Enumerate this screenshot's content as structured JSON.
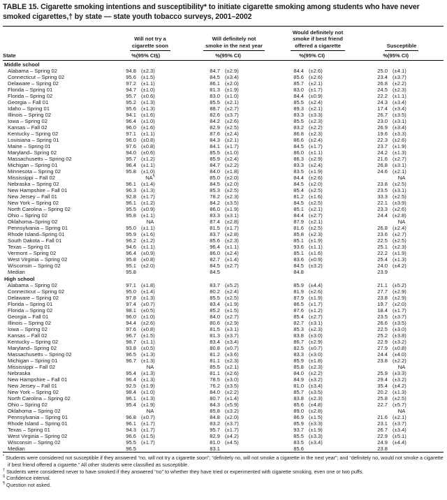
{
  "title": "TABLE 15. Cigarette smoking intentions and susceptibility* to initiate cigarette smoking among students who have never smoked cigarettes,† by state — state youth tobacco surveys, 2001–2002",
  "columns": {
    "state": "State",
    "groups": [
      {
        "lines": [
          "Will not try a",
          "cigarette soon"
        ],
        "pct": "%",
        "ci": "(95% CI§)"
      },
      {
        "lines": [
          "Will definitely not",
          "smoke in the next year"
        ],
        "pct": "%",
        "ci": "(95% CI)"
      },
      {
        "lines": [
          "Would definitely not",
          "smoke if best friend",
          "offered a cigarette"
        ],
        "pct": "%",
        "ci": "(95% CI)"
      },
      {
        "lines": [
          "Susceptible"
        ],
        "pct": "%",
        "ci": "(95% CI)"
      }
    ]
  },
  "sections": [
    {
      "name": "Middle school",
      "rows": [
        [
          "Alabama – Spring 02",
          "94.8",
          "(±2.3)",
          "84.7",
          "(±2.9)",
          "84.4",
          "(±2.6)",
          "25.0",
          "(±4.1)"
        ],
        [
          "Connecticut – Spring 02",
          "95.6",
          "(±1.5)",
          "84.5",
          "(±3.4)",
          "85.6",
          "(±2.6)",
          "23.4",
          "(±3.7)"
        ],
        [
          "Delaware – Spring 02",
          "97.2",
          "(±1.1)",
          "86.1",
          "(±2.0)",
          "85.7",
          "(±2.1)",
          "26.8",
          "(±2.2)"
        ],
        [
          "Florida – Spring 01",
          "94.7",
          "(±1.0)",
          "81.3",
          "(±1.9)",
          "83.0",
          "(±1.7)",
          "24.5",
          "(±2.3)"
        ],
        [
          "Florida – Spring 02",
          "95.7",
          "(±0.6)",
          "83.0",
          "(±1.0)",
          "84.4",
          "(±0.9)",
          "22.2",
          "(±1.1)"
        ],
        [
          "Georgia – Fall 01",
          "95.2",
          "(±1.3)",
          "85.5",
          "(±2.1)",
          "85.5",
          "(±2.4)",
          "24.3",
          "(±3.4)"
        ],
        [
          "Idaho – Spring 01",
          "95.6",
          "(±1.3)",
          "88.7",
          "(±2.7)",
          "89.3",
          "(±2.1)",
          "17.4",
          "(±3.4)"
        ],
        [
          "Illinois – Spring 02",
          "94.1",
          "(±1.6)",
          "82.6",
          "(±3.7)",
          "83.3",
          "(±3.3)",
          "26.7",
          "(±3.5)"
        ],
        [
          "Iowa – Spring 02",
          "96.4",
          "(±1.0)",
          "84.2",
          "(±2.6)",
          "85.5",
          "(±2.3)",
          "23.0",
          "(±3.1)"
        ],
        [
          "Kansas – Fall 02",
          "96.0",
          "(±1.6)",
          "82.9",
          "(±2.5)",
          "83.2",
          "(±2.2)",
          "26.9",
          "(±3.4)"
        ],
        [
          "Kentucky – Spring 02",
          "97.1",
          "(±1.1)",
          "87.6",
          "(±2.4)",
          "86.8",
          "(±2.3)",
          "19.6",
          "(±3.3)"
        ],
        [
          "Louisiana – Spring 01",
          "96.0",
          "(±0.8)",
          "84.3",
          "(±2.1)",
          "86.6",
          "(±2.4)",
          "22.3",
          "(±2.6)"
        ],
        [
          "Maine – Spring 01",
          "97.6",
          "(±0.8)",
          "84.1",
          "(±1.7)",
          "84.5",
          "(±1.7)",
          "23.7",
          "(±1.9)"
        ],
        [
          "Maryland– Spring 02",
          "94.0",
          "(±0.6)",
          "85.5",
          "(±1.0)",
          "86.0",
          "(±1.1)",
          "24.2",
          "(±1.3)"
        ],
        [
          "Massachusetts – Spring 02",
          "95.7",
          "(±1.2)",
          "85.9",
          "(±2.4)",
          "86.3",
          "(±2.9)",
          "21.6",
          "(±2.7)"
        ],
        [
          "Michigan – Spring 01",
          "96.4",
          "(±1.1)",
          "84.7",
          "(±2.2)",
          "83.3",
          "(±2.4)",
          "26.8",
          "(±3.1)"
        ],
        [
          "Minnesota – Spring 02",
          "95.8",
          "(±1.0)",
          "84.0",
          "(±1.8)",
          "83.5",
          "(±1.9)",
          "24.6",
          "(±2.1)"
        ],
        [
          "Mississippi – Fall 02",
          "NA¶",
          "",
          "85.0",
          "(±2.0)",
          "84.4",
          "(±2.6)",
          "NA",
          ""
        ],
        [
          "Nebraska – Spring 02",
          "96.1",
          "(±1.4)",
          "84.5",
          "(±2.0)",
          "84.5",
          "(±2.0)",
          "23.8",
          "(±2.5)"
        ],
        [
          "New Hampshire – Fall 01",
          "96.3",
          "(±1.3)",
          "85.3",
          "(±2.5)",
          "85.4",
          "(±2.5)",
          "23.5",
          "(±3.1)"
        ],
        [
          "New Jersey – Fall 01",
          "92.8",
          "(±1.7)",
          "78.2",
          "(±2.3)",
          "81.2",
          "(±1.6)",
          "33.3",
          "(±2.5)"
        ],
        [
          "New York – Spring 02",
          "96.1",
          "(±1.2)",
          "84.2",
          "(±3.5)",
          "84.5",
          "(±2.5)",
          "22.1",
          "(±3.9)"
        ],
        [
          "North Carolina – Spring 02",
          "95.5",
          "(±0.9)",
          "86.0",
          "(±1.9)",
          "85.1",
          "(±2.1)",
          "23.3",
          "(±2.6)"
        ],
        [
          "Ohio – Spring 02",
          "95.8",
          "(±1.1)",
          "83.3",
          "(±3.1)",
          "84.4",
          "(±2.7)",
          "24.4",
          "(±2.8)"
        ],
        [
          "Oklahoma–Spring 02",
          "NA",
          "",
          "87.4",
          "(±2.8)",
          "87.9",
          "(±2.1)",
          "NA",
          ""
        ],
        [
          "Pennsylvania – Spring 01",
          "95.0",
          "(±1.1)",
          "81.5",
          "(±1.7)",
          "81.6",
          "(±2.5)",
          "26.8",
          "(±2.4)"
        ],
        [
          "Rhode Island–Spring 01",
          "95.9",
          "(±1.6)",
          "83.7",
          "(±2.8)",
          "85.8",
          "(±2.3)",
          "23.6",
          "(±2.7)"
        ],
        [
          "South Dakota – Fall 01",
          "96.2",
          "(±1.2)",
          "85.6",
          "(±2.3)",
          "85.1",
          "(±1.9)",
          "22.5",
          "(±2.5)"
        ],
        [
          "Texas – Spring 01",
          "94.6",
          "(±1.1)",
          "96.4",
          "(±1.1)",
          "93.6",
          "(±1.1)",
          "25.1",
          "(±2.3)"
        ],
        [
          "Vermont – Spring 02",
          "96.4",
          "(±0.9)",
          "86.0",
          "(±2.4)",
          "85.1",
          "(±1.6)",
          "22.2",
          "(±1.9)"
        ],
        [
          "West Virginia – Spring 02",
          "95.8",
          "(±0.8)",
          "82.7",
          "(±1.4)",
          "83.6",
          "(±0.9)",
          "25.4",
          "(±1.3)"
        ],
        [
          "Wisconsin – Spring 02",
          "95.1",
          "(±2.0)",
          "84.5",
          "(±2.7)",
          "84.5",
          "(±3.2)",
          "24.0",
          "(±4.2)"
        ],
        [
          "Median",
          "95.8",
          "",
          "84.5",
          "",
          "84.8",
          "",
          "23.9",
          ""
        ]
      ]
    },
    {
      "name": "High school",
      "rows": [
        [
          "Alabama – Spring 02",
          "97.1",
          "(±1.8)",
          "83.7",
          "(±5.2)",
          "85.9",
          "(±4.4)",
          "21.1",
          "(±5.2)"
        ],
        [
          "Connecticut – Spring 02",
          "95.0",
          "(±1.4)",
          "80.2",
          "(±2.4)",
          "81.9",
          "(±2.6)",
          "27.7",
          "(±2.9)"
        ],
        [
          "Delaware – Spring 02",
          "97.8",
          "(±1.3)",
          "85.5",
          "(±2.5)",
          "87.9",
          "(±1.9)",
          "23.8",
          "(±2.9)"
        ],
        [
          "Florida – Spring 01",
          "97.4",
          "(±0.7)",
          "83.4",
          "(±1.9)",
          "86.5",
          "(±1.7)",
          "19.7",
          "(±2.0)"
        ],
        [
          "Florida – Spring 02",
          "98.1",
          "(±0.5)",
          "85.2",
          "(±1.5)",
          "87.6",
          "(±1.2)",
          "18.4",
          "(±1.7)"
        ],
        [
          "Georgia – Fall 01",
          "96.0",
          "(±1.0)",
          "84.0",
          "(±2.7)",
          "85.4",
          "(±2.7)",
          "23.5",
          "(±3.7)"
        ],
        [
          "Illinois – Spring 02",
          "94.4",
          "(±2.6)",
          "80.6",
          "(±2.9)",
          "82.7",
          "(±3.1)",
          "26.6",
          "(±3.5)"
        ],
        [
          "Iowa – Spring 02",
          "97.6",
          "(±0.8)",
          "81.5",
          "(±3.1)",
          "85.3",
          "(±2.3)",
          "22.5",
          "(±3.0)"
        ],
        [
          "Kansas – Fall 02",
          "96.7",
          "(±1.5)",
          "81.3",
          "(±3.7)",
          "83.8",
          "(±3.0)",
          "25.2",
          "(±3.8)"
        ],
        [
          "Kentucky – Spring 02",
          "98.7",
          "(±1.1)",
          "83.4",
          "(±3.4)",
          "86.7",
          "(±2.9)",
          "22.9",
          "(±3.2)"
        ],
        [
          "Maryland– Spring 02",
          "93.8",
          "(±0.5)",
          "80.8",
          "(±0.7)",
          "82.5",
          "(±0.7)",
          "27.9",
          "(±0.8)"
        ],
        [
          "Massachusetts – Spring 02",
          "96.5",
          "(±1.3)",
          "81.2",
          "(±3.6)",
          "83.3",
          "(±3.0)",
          "24.4",
          "(±4.0)"
        ],
        [
          "Michigan – Spring 01",
          "96.7",
          "(±1.3)",
          "81.1",
          "(±2.3)",
          "85.9",
          "(±1.8)",
          "23.8",
          "(±2.2)"
        ],
        [
          "Mississippi – Fall 02",
          "NA",
          "",
          "85.5",
          "(±2.1)",
          "85.8",
          "(±2.3)",
          "NA",
          ""
        ],
        [
          "Nebraska",
          "95.4",
          "(±1.3)",
          "81.1",
          "(±2.6)",
          "84.0",
          "(±2.2)",
          "25.9",
          "(±3.3)"
        ],
        [
          "New Hampshire – Fall 01",
          "96.4",
          "(±1.3)",
          "78.5",
          "(±3.0)",
          "84.9",
          "(±3.2)",
          "29.4",
          "(±3.2)"
        ],
        [
          "New Jersey – Fall 01",
          "92.5",
          "(±1.9)",
          "76.2",
          "(±3.5)",
          "81.0",
          "(±3.4)",
          "35.4",
          "(±4.2)"
        ],
        [
          "New York – Spring 02",
          "98.4",
          "(±1.0)",
          "84.0",
          "(±2.2)",
          "85.7",
          "(±3.5)",
          "20.2",
          "(±1.3)"
        ],
        [
          "North Carolina – Spring 02",
          "96.1",
          "(±1.3)",
          "80.7",
          "(±1.4)",
          "83.8",
          "(±2.3)",
          "25.8",
          "(±2.5)"
        ],
        [
          "Ohio – Spring 02",
          "95.4",
          "(±1.9)",
          "84.3",
          "(±5.9)",
          "85.6",
          "(±4.8)",
          "22.7",
          "(±5.7)"
        ],
        [
          "Oklahoma – Spring 02",
          "NA",
          "",
          "85.8",
          "(±3.2)",
          "89.0",
          "(±2.8)",
          "NA",
          ""
        ],
        [
          "Pennsylvania – Spring 01",
          "96.8",
          "(±0.7)",
          "84.8",
          "(±2.0)",
          "86.9",
          "(±1.5)",
          "21.6",
          "(±2.1)"
        ],
        [
          "Rhode Island – Spring 01",
          "96.1",
          "(±1.7)",
          "83.2",
          "(±3.7)",
          "85.9",
          "(±3.3)",
          "23.1",
          "(±3.7)"
        ],
        [
          "Texas – Spring 01",
          "94.3",
          "(±1.7)",
          "95.7",
          "(±1.7)",
          "93.7",
          "(±1.9)",
          "26.7",
          "(±3.4)"
        ],
        [
          "West Virginia – Spring 02",
          "96.6",
          "(±1.5)",
          "82.9",
          "(±4.2)",
          "85.5",
          "(±3.3)",
          "22.9",
          "(±5.1)"
        ],
        [
          "Wisconsin – Spring 02",
          "95.5",
          "(±1.7)",
          "81.0",
          "(±4.5)",
          "83.5",
          "(±3.4)",
          "24.9",
          "(±4.4)"
        ],
        [
          "Median",
          "96.5",
          "",
          "83.1",
          "",
          "85.6",
          "",
          "23.8",
          ""
        ]
      ]
    }
  ],
  "footnotes": [
    {
      "sym": "*",
      "text": "Students were considered not susceptible if they answered “no, will not try a cigarette soon”; “definitely no, will not smoke a cigarette in the next year”; and “definitely no, would not smoke a cigarette if best friend offered a cigarette.” All other students were classified as susceptible."
    },
    {
      "sym": "†",
      "text": "Students were considered never to have smoked if they answered “no” to whether they have tried or experimented with cigarette smoking, even one or two puffs."
    },
    {
      "sym": "§",
      "text": "Confidence interval."
    },
    {
      "sym": "¶",
      "text": "Question not asked."
    }
  ]
}
